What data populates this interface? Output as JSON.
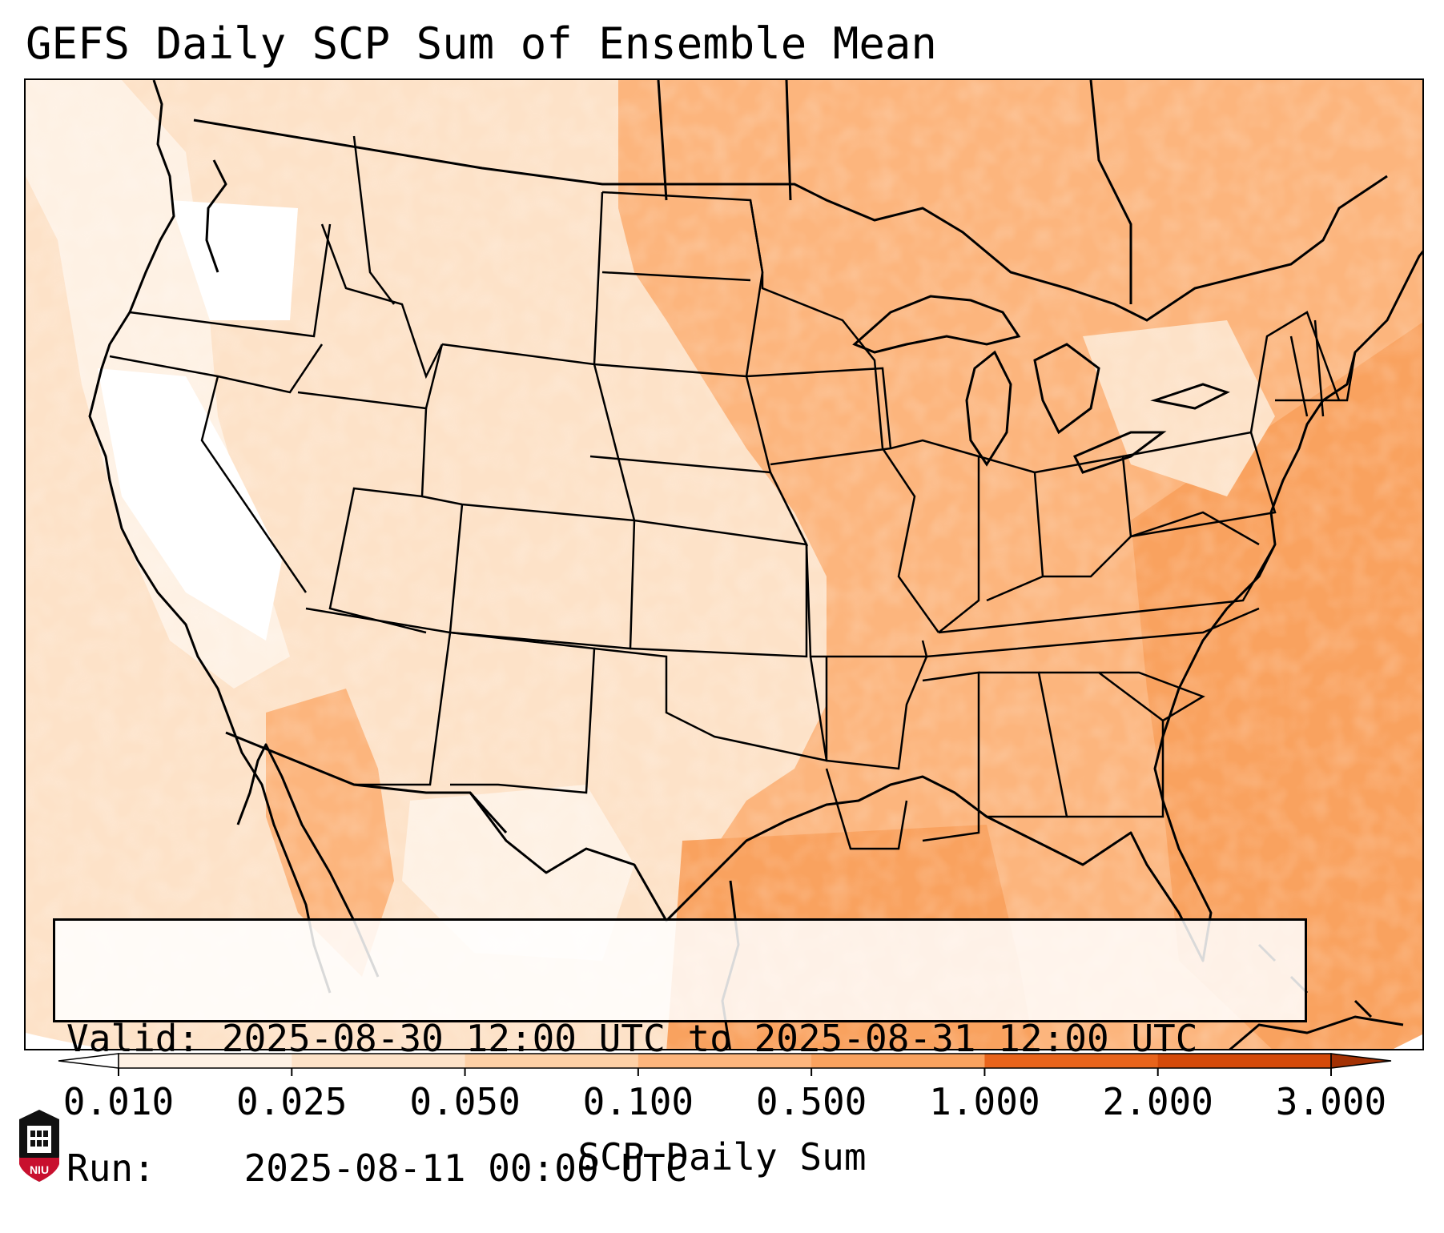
{
  "title": "GEFS Daily SCP Sum of Ensemble Mean",
  "info": {
    "valid_label": "Valid:",
    "valid_value": "2025-08-30 12:00 UTC to 2025-08-31 12:00 UTC",
    "run_label": "Run:",
    "run_value": "2025-08-11 00:00 UTC"
  },
  "colorbar": {
    "label": "SCP Daily Sum",
    "ticks": [
      "0.010",
      "0.025",
      "0.050",
      "0.100",
      "0.500",
      "1.000",
      "2.000",
      "3.000"
    ],
    "colors": [
      "#fef1e4",
      "#fde2c8",
      "#fdd0a6",
      "#fcb57d",
      "#f9a25f",
      "#e8641c",
      "#d44a0a"
    ],
    "under_color": "#ffffff",
    "over_color": "#a33104",
    "extend": "both"
  },
  "map": {
    "region": "Contiguous United States",
    "land_color": "#fcb57d",
    "ocean_color": "#f9a25f",
    "low_color": "#ffffff",
    "boundary_color": "#000000"
  },
  "logo": {
    "text": "NIU",
    "primary_color": "#c8102e"
  }
}
